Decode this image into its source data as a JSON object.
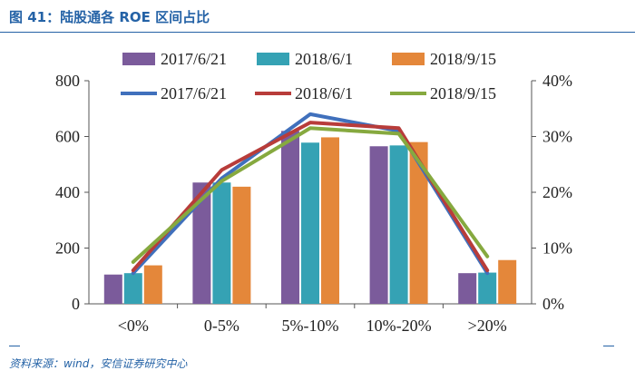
{
  "header": {
    "title": "图 41：陆股通各 ROE 区间占比"
  },
  "footer": {
    "source": "资料来源：wind，安信证券研究中心"
  },
  "colors": {
    "title": "#2462a6",
    "bar_2017": "#7b5b9b",
    "bar_2018_6": "#35a2b4",
    "bar_2018_9": "#e4873a",
    "line_2017": "#4070bc",
    "line_2018_6": "#b83c3a",
    "line_2018_9": "#86a93f"
  },
  "chart_data": {
    "type": "bar+line",
    "categories": [
      "<0%",
      "0-5%",
      "5%-10%",
      "10%-20%",
      ">20%"
    ],
    "y_left": {
      "ylim": [
        0,
        800
      ],
      "ticks": [
        "0",
        "200",
        "400",
        "600",
        "800"
      ]
    },
    "y_right": {
      "ylim": [
        0,
        40
      ],
      "ticks": [
        "0%",
        "10%",
        "20%",
        "30%",
        "40%"
      ]
    },
    "bar_series": [
      {
        "name": "2017/6/21",
        "values": [
          105,
          435,
          620,
          565,
          110
        ]
      },
      {
        "name": "2018/6/1",
        "values": [
          110,
          435,
          578,
          568,
          112
        ]
      },
      {
        "name": "2018/9/15",
        "values": [
          138,
          420,
          597,
          580,
          157
        ]
      }
    ],
    "line_series": [
      {
        "name": "2017/6/21",
        "values": [
          5.5,
          22.5,
          34.0,
          31.0,
          5.5
        ]
      },
      {
        "name": "2018/6/1",
        "values": [
          6.0,
          24.0,
          32.5,
          31.5,
          6.0
        ]
      },
      {
        "name": "2018/9/15",
        "values": [
          7.5,
          22.0,
          31.5,
          30.5,
          8.5
        ]
      }
    ],
    "legend_placement": "top",
    "grid": false
  }
}
